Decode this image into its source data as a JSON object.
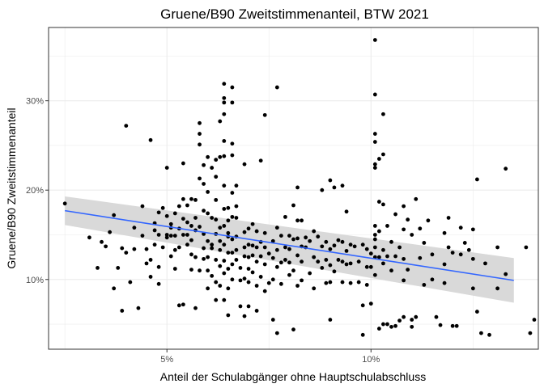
{
  "chart_data": {
    "type": "scatter",
    "title": "Gruene/B90 Zweitstimmenanteil, BTW 2021",
    "xlabel": "Anteil der Schulabgänger ohne Hauptschulabschluss",
    "ylabel": "Gruene/B90 Zweitstimmenanteil",
    "xlim": [
      2.1,
      14.1
    ],
    "ylim": [
      2.2,
      38.2
    ],
    "x_ticks": [
      5,
      10
    ],
    "x_tick_labels": [
      "5%",
      "10%"
    ],
    "y_ticks": [
      10,
      20,
      30
    ],
    "y_tick_labels": [
      "10%",
      "20%",
      "30%"
    ],
    "grid": true,
    "legend": "none",
    "colors": {
      "points": "#000000",
      "trend": "#3366ff",
      "band": "#d9d9d9",
      "grid": "#ebebeb",
      "frame": "#333333"
    },
    "trend": {
      "x": [
        2.5,
        13.5
      ],
      "y": [
        17.7,
        9.9
      ],
      "ci_lower": [
        16.1,
        7.4
      ],
      "ci_upper": [
        19.3,
        12.4
      ]
    },
    "points": [
      [
        2.5,
        18.5
      ],
      [
        3.1,
        14.7
      ],
      [
        3.3,
        11.3
      ],
      [
        3.4,
        14.2
      ],
      [
        3.5,
        13.7
      ],
      [
        3.6,
        15.3
      ],
      [
        3.7,
        17.2
      ],
      [
        3.7,
        9.0
      ],
      [
        3.8,
        11.3
      ],
      [
        3.9,
        6.5
      ],
      [
        3.9,
        13.5
      ],
      [
        4.0,
        13.0
      ],
      [
        4.0,
        27.2
      ],
      [
        4.1,
        9.7
      ],
      [
        4.2,
        15.8
      ],
      [
        4.2,
        13.4
      ],
      [
        4.3,
        6.8
      ],
      [
        4.4,
        18.2
      ],
      [
        4.4,
        14.9
      ],
      [
        4.5,
        13.4
      ],
      [
        4.5,
        11.8
      ],
      [
        4.6,
        25.6
      ],
      [
        4.6,
        12.2
      ],
      [
        4.6,
        10.3
      ],
      [
        4.7,
        16.3
      ],
      [
        4.7,
        13.9
      ],
      [
        4.7,
        15.5
      ],
      [
        4.8,
        17.5
      ],
      [
        4.8,
        15.0
      ],
      [
        4.8,
        11.4
      ],
      [
        4.8,
        9.5
      ],
      [
        4.9,
        13.6
      ],
      [
        4.9,
        18.0
      ],
      [
        5.0,
        22.5
      ],
      [
        5.0,
        17.1
      ],
      [
        5.0,
        14.7
      ],
      [
        5.0,
        15.0
      ],
      [
        5.1,
        16.2
      ],
      [
        5.1,
        15.8
      ],
      [
        5.1,
        14.9
      ],
      [
        5.1,
        12.6
      ],
      [
        5.2,
        17.4
      ],
      [
        5.2,
        14.9
      ],
      [
        5.2,
        13.3
      ],
      [
        5.2,
        11.2
      ],
      [
        5.3,
        18.2
      ],
      [
        5.3,
        15.7
      ],
      [
        5.3,
        13.6
      ],
      [
        5.3,
        7.1
      ],
      [
        5.4,
        19.0
      ],
      [
        5.4,
        16.8
      ],
      [
        5.4,
        15.0
      ],
      [
        5.4,
        23.0
      ],
      [
        5.4,
        7.2
      ],
      [
        5.5,
        18.3
      ],
      [
        5.5,
        16.4
      ],
      [
        5.5,
        15.0
      ],
      [
        5.5,
        13.9
      ],
      [
        5.6,
        19.0
      ],
      [
        5.6,
        16.0
      ],
      [
        5.6,
        14.4
      ],
      [
        5.6,
        12.8
      ],
      [
        5.6,
        11.1
      ],
      [
        5.7,
        18.9
      ],
      [
        5.7,
        16.9
      ],
      [
        5.7,
        15.5
      ],
      [
        5.7,
        6.8
      ],
      [
        5.7,
        12.5
      ],
      [
        5.8,
        15.9
      ],
      [
        5.8,
        11.0
      ],
      [
        5.8,
        21.3
      ],
      [
        5.8,
        25.1
      ],
      [
        5.8,
        26.3
      ],
      [
        5.8,
        27.5
      ],
      [
        5.9,
        20.7
      ],
      [
        5.9,
        17.7
      ],
      [
        5.9,
        15.1
      ],
      [
        5.9,
        13.5
      ],
      [
        5.9,
        12.3
      ],
      [
        5.9,
        22.8
      ],
      [
        6.0,
        23.7
      ],
      [
        6.0,
        19.8
      ],
      [
        6.0,
        17.4
      ],
      [
        6.0,
        14.3
      ],
      [
        6.0,
        12.5
      ],
      [
        6.0,
        11.0
      ],
      [
        6.0,
        9.0
      ],
      [
        6.1,
        13.9
      ],
      [
        6.1,
        16.9
      ],
      [
        6.1,
        13.5
      ],
      [
        6.1,
        10.4
      ],
      [
        6.1,
        22.5
      ],
      [
        6.2,
        23.4
      ],
      [
        6.2,
        21.5
      ],
      [
        6.2,
        18.9
      ],
      [
        6.2,
        16.7
      ],
      [
        6.2,
        15.1
      ],
      [
        6.2,
        12.2
      ],
      [
        6.2,
        9.7
      ],
      [
        6.2,
        7.7
      ],
      [
        6.3,
        23.7
      ],
      [
        6.3,
        15.8
      ],
      [
        6.3,
        14.3
      ],
      [
        6.3,
        13.3
      ],
      [
        6.3,
        11.5
      ],
      [
        6.3,
        9.3
      ],
      [
        6.3,
        27.7
      ],
      [
        6.4,
        28.5
      ],
      [
        6.4,
        25.5
      ],
      [
        6.4,
        29.8
      ],
      [
        6.4,
        30.3
      ],
      [
        6.4,
        31.9
      ],
      [
        6.4,
        23.8
      ],
      [
        6.4,
        20.5
      ],
      [
        6.4,
        17.9
      ],
      [
        6.4,
        16.0
      ],
      [
        6.4,
        13.9
      ],
      [
        6.4,
        12.1
      ],
      [
        6.4,
        10.7
      ],
      [
        6.4,
        7.7
      ],
      [
        6.5,
        15.2
      ],
      [
        6.5,
        18.0
      ],
      [
        6.5,
        16.6
      ],
      [
        6.5,
        14.8
      ],
      [
        6.5,
        13.0
      ],
      [
        6.5,
        11.2
      ],
      [
        6.5,
        9.0
      ],
      [
        6.5,
        6.0
      ],
      [
        6.6,
        31.5
      ],
      [
        6.6,
        29.8
      ],
      [
        6.6,
        25.2
      ],
      [
        6.6,
        23.9
      ],
      [
        6.6,
        19.7
      ],
      [
        6.6,
        17.0
      ],
      [
        6.6,
        14.5
      ],
      [
        6.6,
        13.0
      ],
      [
        6.6,
        11.7
      ],
      [
        6.6,
        10.0
      ],
      [
        6.7,
        20.5
      ],
      [
        6.7,
        18.2
      ],
      [
        6.7,
        16.9
      ],
      [
        6.7,
        14.8
      ],
      [
        6.7,
        13.3
      ],
      [
        6.7,
        12.2
      ],
      [
        6.8,
        11.3
      ],
      [
        6.8,
        9.9
      ],
      [
        6.8,
        7.0
      ],
      [
        6.9,
        22.9
      ],
      [
        6.9,
        15.3
      ],
      [
        6.9,
        13.6
      ],
      [
        6.9,
        12.6
      ],
      [
        6.9,
        10.1
      ],
      [
        6.9,
        5.9
      ],
      [
        7.0,
        15.7
      ],
      [
        7.0,
        13.9
      ],
      [
        7.0,
        12.5
      ],
      [
        7.0,
        11.2
      ],
      [
        7.0,
        9.7
      ],
      [
        7.0,
        7.0
      ],
      [
        7.1,
        16.2
      ],
      [
        7.1,
        13.8
      ],
      [
        7.1,
        12.7
      ],
      [
        7.1,
        10.8
      ],
      [
        7.2,
        15.4
      ],
      [
        7.2,
        13.6
      ],
      [
        7.2,
        12.0
      ],
      [
        7.2,
        9.3
      ],
      [
        7.2,
        6.5
      ],
      [
        7.3,
        23.3
      ],
      [
        7.3,
        14.2
      ],
      [
        7.3,
        12.6
      ],
      [
        7.3,
        10.3
      ],
      [
        7.4,
        28.4
      ],
      [
        7.4,
        15.2
      ],
      [
        7.4,
        13.6
      ],
      [
        7.4,
        11.7
      ],
      [
        7.4,
        8.7
      ],
      [
        7.5,
        12.9
      ],
      [
        7.5,
        9.6
      ],
      [
        7.6,
        14.3
      ],
      [
        7.6,
        12.4
      ],
      [
        7.6,
        10.0
      ],
      [
        7.6,
        5.5
      ],
      [
        7.7,
        31.5
      ],
      [
        7.7,
        15.8
      ],
      [
        7.7,
        13.3
      ],
      [
        7.7,
        11.4
      ],
      [
        7.7,
        4.0
      ],
      [
        7.8,
        14.9
      ],
      [
        7.8,
        11.9
      ],
      [
        7.8,
        9.5
      ],
      [
        7.9,
        17.0
      ],
      [
        7.9,
        13.6
      ],
      [
        7.9,
        12.2
      ],
      [
        8.0,
        14.9
      ],
      [
        8.0,
        13.4
      ],
      [
        8.0,
        11.9
      ],
      [
        8.0,
        10.5
      ],
      [
        8.1,
        18.3
      ],
      [
        8.1,
        14.5
      ],
      [
        8.1,
        11.0
      ],
      [
        8.1,
        4.4
      ],
      [
        8.2,
        20.3
      ],
      [
        8.2,
        16.6
      ],
      [
        8.2,
        14.6
      ],
      [
        8.2,
        12.7
      ],
      [
        8.2,
        9.3
      ],
      [
        8.3,
        16.6
      ],
      [
        8.3,
        13.7
      ],
      [
        8.3,
        12.0
      ],
      [
        8.3,
        9.9
      ],
      [
        8.4,
        14.7
      ],
      [
        8.4,
        13.6
      ],
      [
        8.5,
        14.3
      ],
      [
        8.5,
        10.7
      ],
      [
        8.6,
        15.4
      ],
      [
        8.6,
        12.5
      ],
      [
        8.6,
        9.0
      ],
      [
        8.7,
        14.8
      ],
      [
        8.7,
        12.0
      ],
      [
        8.8,
        20.0
      ],
      [
        8.8,
        13.7
      ],
      [
        8.8,
        11.3
      ],
      [
        8.9,
        14.2
      ],
      [
        8.9,
        12.2
      ],
      [
        8.9,
        9.6
      ],
      [
        9.0,
        21.1
      ],
      [
        9.0,
        13.4
      ],
      [
        9.0,
        11.6
      ],
      [
        9.0,
        9.7
      ],
      [
        9.0,
        5.5
      ],
      [
        9.1,
        20.3
      ],
      [
        9.1,
        13.8
      ],
      [
        9.1,
        10.9
      ],
      [
        9.2,
        14.4
      ],
      [
        9.2,
        12.2
      ],
      [
        9.3,
        20.5
      ],
      [
        9.3,
        14.2
      ],
      [
        9.3,
        12.0
      ],
      [
        9.3,
        9.7
      ],
      [
        9.4,
        17.6
      ],
      [
        9.4,
        13.2
      ],
      [
        9.4,
        11.7
      ],
      [
        9.5,
        13.9
      ],
      [
        9.5,
        11.8
      ],
      [
        9.5,
        9.6
      ],
      [
        9.6,
        13.7
      ],
      [
        9.7,
        12.0
      ],
      [
        9.7,
        9.7
      ],
      [
        9.8,
        13.9
      ],
      [
        9.8,
        7.1
      ],
      [
        9.8,
        3.8
      ],
      [
        9.9,
        13.4
      ],
      [
        9.9,
        11.4
      ],
      [
        9.9,
        9.4
      ],
      [
        10.0,
        12.9
      ],
      [
        10.0,
        11.4
      ],
      [
        10.0,
        7.3
      ],
      [
        10.1,
        36.8
      ],
      [
        10.1,
        30.7
      ],
      [
        10.1,
        26.3
      ],
      [
        10.1,
        25.4
      ],
      [
        10.1,
        22.9
      ],
      [
        10.1,
        22.5
      ],
      [
        10.1,
        16.0
      ],
      [
        10.1,
        15.0
      ],
      [
        10.1,
        14.5
      ],
      [
        10.1,
        13.6
      ],
      [
        10.1,
        12.5
      ],
      [
        10.1,
        10.5
      ],
      [
        10.2,
        23.5
      ],
      [
        10.2,
        18.7
      ],
      [
        10.2,
        15.4
      ],
      [
        10.2,
        12.5
      ],
      [
        10.2,
        4.5
      ],
      [
        10.3,
        28.5
      ],
      [
        10.3,
        24.0
      ],
      [
        10.3,
        18.4
      ],
      [
        10.3,
        13.3
      ],
      [
        10.3,
        11.8
      ],
      [
        10.3,
        5.0
      ],
      [
        10.4,
        16.0
      ],
      [
        10.4,
        12.6
      ],
      [
        10.4,
        5.0
      ],
      [
        10.5,
        14.2
      ],
      [
        10.5,
        11.0
      ],
      [
        10.5,
        4.7
      ],
      [
        10.6,
        17.3
      ],
      [
        10.6,
        12.6
      ],
      [
        10.6,
        4.8
      ],
      [
        10.7,
        13.6
      ],
      [
        10.7,
        5.4
      ],
      [
        10.8,
        18.2
      ],
      [
        10.8,
        15.6
      ],
      [
        10.8,
        12.3
      ],
      [
        10.8,
        9.9
      ],
      [
        10.8,
        5.8
      ],
      [
        10.9,
        16.7
      ],
      [
        10.9,
        11.1
      ],
      [
        11.0,
        4.7
      ],
      [
        11.0,
        15.0
      ],
      [
        11.0,
        5.5
      ],
      [
        11.1,
        5.8
      ],
      [
        11.1,
        19.0
      ],
      [
        11.2,
        15.7
      ],
      [
        11.2,
        12.4
      ],
      [
        11.3,
        14.1
      ],
      [
        11.3,
        9.4
      ],
      [
        11.4,
        16.6
      ],
      [
        11.5,
        12.8
      ],
      [
        11.5,
        10.0
      ],
      [
        11.6,
        5.8
      ],
      [
        11.7,
        4.9
      ],
      [
        11.8,
        15.2
      ],
      [
        11.8,
        11.7
      ],
      [
        11.8,
        9.6
      ],
      [
        11.9,
        16.9
      ],
      [
        11.9,
        13.6
      ],
      [
        12.0,
        13.0
      ],
      [
        12.0,
        4.8
      ],
      [
        12.1,
        4.8
      ],
      [
        12.2,
        15.8
      ],
      [
        12.2,
        12.8
      ],
      [
        12.3,
        14.1
      ],
      [
        12.4,
        13.3
      ],
      [
        12.5,
        15.6
      ],
      [
        12.5,
        12.3
      ],
      [
        12.5,
        9.0
      ],
      [
        12.6,
        21.2
      ],
      [
        12.6,
        6.4
      ],
      [
        12.7,
        4.0
      ],
      [
        12.8,
        11.8
      ],
      [
        12.9,
        3.8
      ],
      [
        13.1,
        13.6
      ],
      [
        13.1,
        9.0
      ],
      [
        13.3,
        22.4
      ],
      [
        13.3,
        10.6
      ],
      [
        13.8,
        13.6
      ],
      [
        13.9,
        4.0
      ],
      [
        14.0,
        5.5
      ]
    ]
  }
}
